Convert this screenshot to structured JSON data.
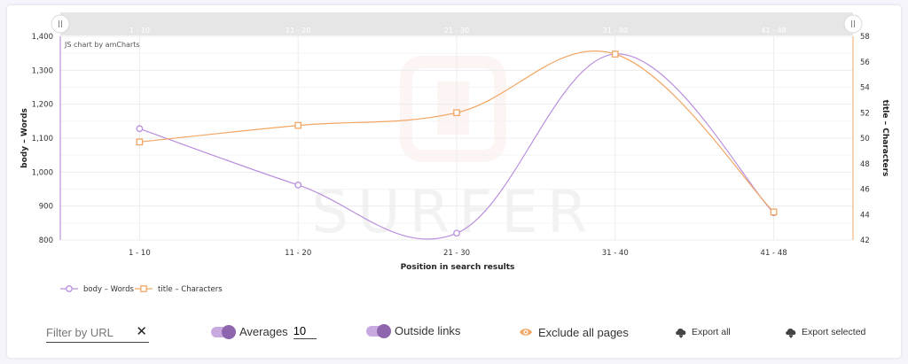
{
  "chart_data": {
    "type": "line",
    "credit": "JS chart by amCharts",
    "watermark": "SURFER",
    "xlabel": "Position in search results",
    "categories": [
      "1 - 10",
      "11 - 20",
      "21 - 30",
      "31 - 40",
      "41 - 48"
    ],
    "y_left": {
      "label": "body – Words",
      "min": 800,
      "max": 1400,
      "ticks": [
        800,
        900,
        1000,
        1100,
        1200,
        1300,
        1400
      ],
      "tick_labels": [
        "800",
        "900",
        "1,000",
        "1,100",
        "1,200",
        "1,300",
        "1,400"
      ]
    },
    "y_right": {
      "label": "title – Characters",
      "min": 42,
      "max": 58,
      "ticks": [
        42,
        44,
        46,
        48,
        50,
        52,
        54,
        56,
        58
      ],
      "tick_labels": [
        "42",
        "44",
        "46",
        "48",
        "50",
        "52",
        "54",
        "56",
        "58"
      ]
    },
    "series": [
      {
        "name": "body – Words",
        "axis": "left",
        "color": "#b98fde",
        "marker": "circle",
        "values": [
          1128,
          962,
          820,
          1348,
          880
        ]
      },
      {
        "name": "title – Characters",
        "axis": "right",
        "color": "#f2a663",
        "marker": "square",
        "values": [
          49.7,
          51.0,
          52.0,
          56.6,
          44.2
        ]
      }
    ],
    "grid": true,
    "legend_position": "bottom-left",
    "scrollbar": true
  },
  "toolbar": {
    "filter_placeholder": "Filter by URL",
    "averages_label": "Averages",
    "averages_value": "10",
    "outside_links_label": "Outside links",
    "exclude_label": "Exclude all pages",
    "export_all_label": "Export all",
    "export_selected_label": "Export selected",
    "accent_color": "#8e66ae",
    "eye_color": "#f2a663"
  }
}
